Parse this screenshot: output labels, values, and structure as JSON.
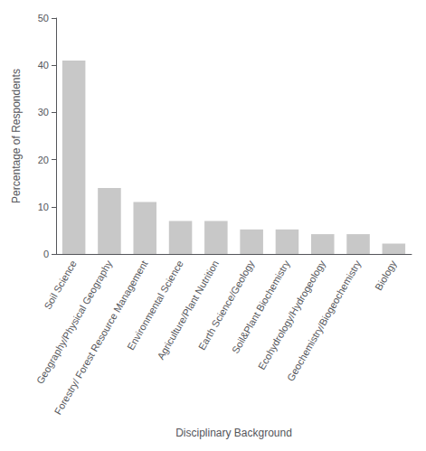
{
  "chart_data": {
    "type": "bar",
    "categories": [
      "Soil Science",
      "Geography/Physical Geography",
      "Forestry/ Forest Resource Management",
      "Environmental Science",
      "Agriculture/Plant Nutrition",
      "Earth Science/Geology",
      "Soil&Plant Biochemistry",
      "Ecohydrology/Hydrogeology",
      "Geochemistry/Biogeochemistry",
      "Biology"
    ],
    "values": [
      41,
      14,
      11,
      7,
      7,
      5.2,
      5.2,
      4.2,
      4.2,
      2.2
    ],
    "color": "#c8c8c8",
    "xlabel": "Disciplinary Background",
    "ylabel": "Percentage of Respondents",
    "ylim": [
      0,
      50
    ],
    "yticks": [
      0,
      10,
      20,
      30,
      40,
      50
    ],
    "grid": false
  }
}
